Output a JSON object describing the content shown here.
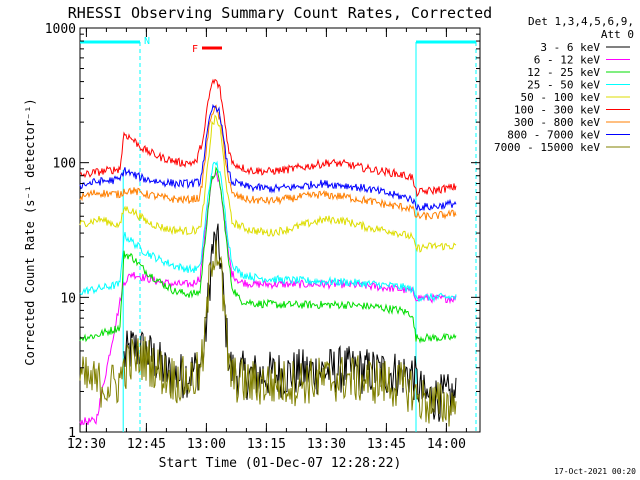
{
  "chart_data": {
    "type": "line",
    "title": "RHESSI Observing Summary Count Rates, Corrected",
    "xlabel": "Start Time (01-Dec-07 12:28:22)",
    "ylabel": "Corrected Count Rate (s⁻¹ detector⁻¹)",
    "y_scale": "log",
    "ylim": [
      1,
      1000
    ],
    "xlim_minutes": [
      0,
      100
    ],
    "x_ticks": [
      {
        "label": "12:30",
        "minute": 1.6
      },
      {
        "label": "12:45",
        "minute": 16.6
      },
      {
        "label": "13:00",
        "minute": 31.6
      },
      {
        "label": "13:15",
        "minute": 46.6
      },
      {
        "label": "13:30",
        "minute": 61.6
      },
      {
        "label": "13:45",
        "minute": 76.6
      },
      {
        "label": "14:00",
        "minute": 91.6
      }
    ],
    "y_ticks": [
      {
        "label": "1",
        "value": 1
      },
      {
        "label": "10",
        "value": 10
      },
      {
        "label": "100",
        "value": 100
      },
      {
        "label": "1000",
        "value": 1000
      }
    ],
    "legend": {
      "placement": "right",
      "header": [
        "Det 1,3,4,5,6,9,",
        "Att 0"
      ]
    },
    "annotations": {
      "night_label": "N",
      "flare_label": "F",
      "night_color": "#00ffff",
      "flare_color": "#ff0000"
    },
    "series": [
      {
        "name": "3 - 6 keV",
        "color": "#000000",
        "points": [
          [
            11,
            3.5
          ],
          [
            13,
            4.2
          ],
          [
            16,
            4
          ],
          [
            19,
            3.4
          ],
          [
            22,
            2.7
          ],
          [
            25,
            2.6
          ],
          [
            28,
            2.8
          ],
          [
            30,
            3.1
          ],
          [
            31,
            4
          ],
          [
            32,
            9
          ],
          [
            33,
            22
          ],
          [
            34,
            26
          ],
          [
            35,
            21
          ],
          [
            36,
            9
          ],
          [
            37,
            4
          ],
          [
            38,
            2.8
          ],
          [
            42,
            2.6
          ],
          [
            50,
            2.7
          ],
          [
            58,
            2.8
          ],
          [
            66,
            2.9
          ],
          [
            74,
            2.8
          ],
          [
            80,
            2.7
          ],
          [
            83,
            2.7
          ],
          [
            86,
            1.8
          ],
          [
            90,
            1.8
          ],
          [
            94,
            1.8
          ]
        ]
      },
      {
        "name": "6 - 12 keV",
        "color": "#ff00ff",
        "points": [
          [
            0,
            1.2
          ],
          [
            2,
            1.2
          ],
          [
            4,
            1.2
          ],
          [
            11,
            13
          ],
          [
            13,
            15
          ],
          [
            16,
            14
          ],
          [
            20,
            13
          ],
          [
            24,
            12.5
          ],
          [
            28,
            12.5
          ],
          [
            30,
            14
          ],
          [
            31,
            25
          ],
          [
            32,
            48
          ],
          [
            33,
            75
          ],
          [
            34,
            80
          ],
          [
            35,
            70
          ],
          [
            36,
            40
          ],
          [
            37,
            22
          ],
          [
            38,
            15
          ],
          [
            40,
            13
          ],
          [
            44,
            12.5
          ],
          [
            50,
            12.5
          ],
          [
            58,
            12.5
          ],
          [
            66,
            12.5
          ],
          [
            74,
            12
          ],
          [
            80,
            11.5
          ],
          [
            83,
            11
          ],
          [
            84,
            10
          ],
          [
            88,
            9.8
          ],
          [
            94,
            9.8
          ]
        ]
      },
      {
        "name": "12 - 25 keV",
        "color": "#00dd00",
        "points": [
          [
            0,
            5
          ],
          [
            4,
            5.2
          ],
          [
            10,
            6
          ],
          [
            11,
            21
          ],
          [
            13,
            20
          ],
          [
            16,
            16
          ],
          [
            20,
            13
          ],
          [
            24,
            11
          ],
          [
            28,
            10.5
          ],
          [
            30,
            11
          ],
          [
            31,
            22
          ],
          [
            32,
            45
          ],
          [
            33,
            75
          ],
          [
            34,
            88
          ],
          [
            35,
            70
          ],
          [
            36,
            40
          ],
          [
            37,
            20
          ],
          [
            38,
            12
          ],
          [
            40,
            9.5
          ],
          [
            44,
            9
          ],
          [
            50,
            8.8
          ],
          [
            58,
            8.8
          ],
          [
            66,
            8.8
          ],
          [
            74,
            8.5
          ],
          [
            80,
            8
          ],
          [
            83,
            7.5
          ],
          [
            84,
            5
          ],
          [
            88,
            5
          ],
          [
            94,
            5
          ]
        ]
      },
      {
        "name": "25 - 50 keV",
        "color": "#00ffff",
        "points": [
          [
            0,
            11
          ],
          [
            4,
            11.5
          ],
          [
            10,
            12.5
          ],
          [
            11,
            29
          ],
          [
            13,
            26
          ],
          [
            16,
            22
          ],
          [
            20,
            19
          ],
          [
            24,
            17
          ],
          [
            28,
            16
          ],
          [
            30,
            16.5
          ],
          [
            31,
            30
          ],
          [
            32,
            55
          ],
          [
            33,
            90
          ],
          [
            34,
            100
          ],
          [
            35,
            85
          ],
          [
            36,
            50
          ],
          [
            37,
            28
          ],
          [
            38,
            18
          ],
          [
            40,
            15
          ],
          [
            44,
            14
          ],
          [
            50,
            13.5
          ],
          [
            58,
            13.2
          ],
          [
            66,
            13
          ],
          [
            74,
            12.5
          ],
          [
            80,
            12
          ],
          [
            83,
            11.5
          ],
          [
            84,
            10
          ],
          [
            88,
            10
          ],
          [
            94,
            10
          ]
        ]
      },
      {
        "name": "50 - 100 keV",
        "color": "#dddd00",
        "points": [
          [
            0,
            35
          ],
          [
            5,
            38
          ],
          [
            10,
            34
          ],
          [
            11,
            46
          ],
          [
            13,
            44
          ],
          [
            17,
            36
          ],
          [
            22,
            32
          ],
          [
            27,
            31
          ],
          [
            30,
            32
          ],
          [
            31,
            50
          ],
          [
            32,
            100
          ],
          [
            33,
            190
          ],
          [
            34,
            215
          ],
          [
            35,
            180
          ],
          [
            36,
            100
          ],
          [
            37,
            55
          ],
          [
            38,
            36
          ],
          [
            42,
            32
          ],
          [
            47,
            30
          ],
          [
            52,
            32
          ],
          [
            58,
            36
          ],
          [
            62,
            38
          ],
          [
            66,
            37
          ],
          [
            72,
            33
          ],
          [
            78,
            31
          ],
          [
            83,
            28
          ],
          [
            84,
            23
          ],
          [
            88,
            24
          ],
          [
            94,
            24
          ]
        ]
      },
      {
        "name": "100 - 300 keV",
        "color": "#ff0000",
        "points": [
          [
            0,
            80
          ],
          [
            4,
            85
          ],
          [
            10,
            90
          ],
          [
            11,
            165
          ],
          [
            13,
            150
          ],
          [
            16,
            125
          ],
          [
            20,
            110
          ],
          [
            25,
            100
          ],
          [
            29,
            100
          ],
          [
            31,
            160
          ],
          [
            32,
            280
          ],
          [
            33,
            390
          ],
          [
            34,
            405
          ],
          [
            35,
            350
          ],
          [
            36,
            220
          ],
          [
            37,
            135
          ],
          [
            38,
            100
          ],
          [
            42,
            88
          ],
          [
            47,
            86
          ],
          [
            52,
            89
          ],
          [
            58,
            95
          ],
          [
            62,
            100
          ],
          [
            66,
            98
          ],
          [
            72,
            90
          ],
          [
            78,
            84
          ],
          [
            83,
            78
          ],
          [
            84,
            60
          ],
          [
            88,
            62
          ],
          [
            94,
            66
          ]
        ]
      },
      {
        "name": "300 - 800 keV",
        "color": "#ff7f00",
        "points": [
          [
            0,
            55
          ],
          [
            4,
            60
          ],
          [
            10,
            58
          ],
          [
            11,
            62
          ],
          [
            13,
            62
          ],
          [
            17,
            58
          ],
          [
            22,
            54
          ],
          [
            27,
            53
          ],
          [
            30,
            55
          ],
          [
            31,
            90
          ],
          [
            32,
            160
          ],
          [
            33,
            240
          ],
          [
            34,
            250
          ],
          [
            35,
            210
          ],
          [
            36,
            130
          ],
          [
            37,
            80
          ],
          [
            38,
            58
          ],
          [
            42,
            53
          ],
          [
            48,
            52
          ],
          [
            54,
            55
          ],
          [
            60,
            58
          ],
          [
            66,
            56
          ],
          [
            72,
            52
          ],
          [
            78,
            48
          ],
          [
            83,
            46
          ],
          [
            84,
            40
          ],
          [
            88,
            40
          ],
          [
            94,
            42
          ]
        ]
      },
      {
        "name": "800 - 7000 keV",
        "color": "#0000ff",
        "points": [
          [
            0,
            68
          ],
          [
            4,
            72
          ],
          [
            10,
            75
          ],
          [
            11,
            88
          ],
          [
            13,
            82
          ],
          [
            16,
            76
          ],
          [
            20,
            72
          ],
          [
            24,
            70
          ],
          [
            28,
            70
          ],
          [
            30,
            72
          ],
          [
            31,
            110
          ],
          [
            32,
            180
          ],
          [
            33,
            250
          ],
          [
            34,
            265
          ],
          [
            35,
            230
          ],
          [
            36,
            140
          ],
          [
            37,
            90
          ],
          [
            38,
            72
          ],
          [
            42,
            66
          ],
          [
            48,
            64
          ],
          [
            54,
            66
          ],
          [
            60,
            70
          ],
          [
            66,
            68
          ],
          [
            72,
            64
          ],
          [
            78,
            58
          ],
          [
            83,
            54
          ],
          [
            84,
            47
          ],
          [
            88,
            47
          ],
          [
            94,
            50
          ]
        ]
      },
      {
        "name": "7000 - 15000 keV",
        "color": "#808000",
        "points": [
          [
            0,
            2.5
          ],
          [
            4,
            2.3
          ],
          [
            8,
            2.2
          ],
          [
            10,
            2.4
          ],
          [
            11,
            3
          ],
          [
            13,
            3.4
          ],
          [
            16,
            3.6
          ],
          [
            19,
            3
          ],
          [
            22,
            2.6
          ],
          [
            25,
            2.4
          ],
          [
            28,
            2.5
          ],
          [
            30,
            2.7
          ],
          [
            31,
            4
          ],
          [
            32,
            10
          ],
          [
            33,
            20
          ],
          [
            34,
            25
          ],
          [
            35,
            19
          ],
          [
            36,
            8
          ],
          [
            37,
            3.5
          ],
          [
            38,
            2.5
          ],
          [
            42,
            2.3
          ],
          [
            50,
            2.3
          ],
          [
            58,
            2.4
          ],
          [
            66,
            2.5
          ],
          [
            74,
            2.4
          ],
          [
            80,
            2.2
          ],
          [
            83,
            2.1
          ],
          [
            84,
            1.8
          ],
          [
            88,
            1.6
          ],
          [
            94,
            1.6
          ]
        ]
      }
    ]
  },
  "footer": {
    "timestamp": "17-Oct-2021 00:20"
  }
}
